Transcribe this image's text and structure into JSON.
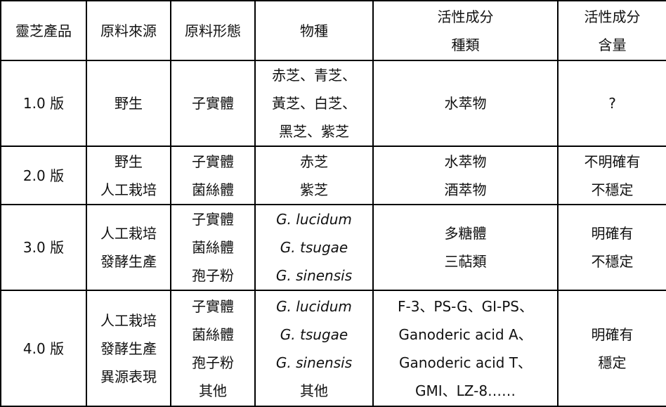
{
  "headers": [
    [
      "靈芝產品"
    ],
    [
      "原料來源"
    ],
    [
      "原料形態"
    ],
    [
      "物種"
    ],
    [
      "活性成分",
      "種類"
    ],
    [
      "活性成分",
      "含量"
    ]
  ],
  "rows": [
    [
      [
        "1.0 版"
      ],
      [
        "野生"
      ],
      [
        "子實體"
      ],
      [
        "赤芝、青芝、",
        "黃芝、白芝、",
        "黑芝、紫芝"
      ],
      [
        "水萃物"
      ],
      [
        "?"
      ]
    ],
    [
      [
        "2.0 版"
      ],
      [
        "野生",
        "人工栽培"
      ],
      [
        "子實體",
        "菌絲體"
      ],
      [
        "赤芝",
        "紫芝"
      ],
      [
        "水萃物",
        "酒萃物"
      ],
      [
        "不明確有",
        "不穩定"
      ]
    ],
    [
      [
        "3.0 版"
      ],
      [
        "人工栽培",
        "發酵生產"
      ],
      [
        "子實體",
        "菌絲體",
        "孢子粉"
      ],
      [
        "G. lucidum",
        "G. tsugae",
        "G. sinensis"
      ],
      [
        "多糖體",
        "三萜類"
      ],
      [
        "明確有",
        "不穩定"
      ]
    ],
    [
      [
        "4.0 版"
      ],
      [
        "人工栽培",
        "發酵生產",
        "異源表現"
      ],
      [
        "子實體",
        "菌絲體",
        "孢子粉",
        "其他"
      ],
      [
        "G. lucidum",
        "G. tsugae",
        "G. sinensis",
        "其他"
      ],
      [
        "F-3、PS-G、GI-PS、",
        "Ganoderic acid A、",
        "Ganoderic acid T、",
        "GMI、LZ-8……"
      ],
      [
        "明確有",
        "穩定"
      ]
    ]
  ]
}
